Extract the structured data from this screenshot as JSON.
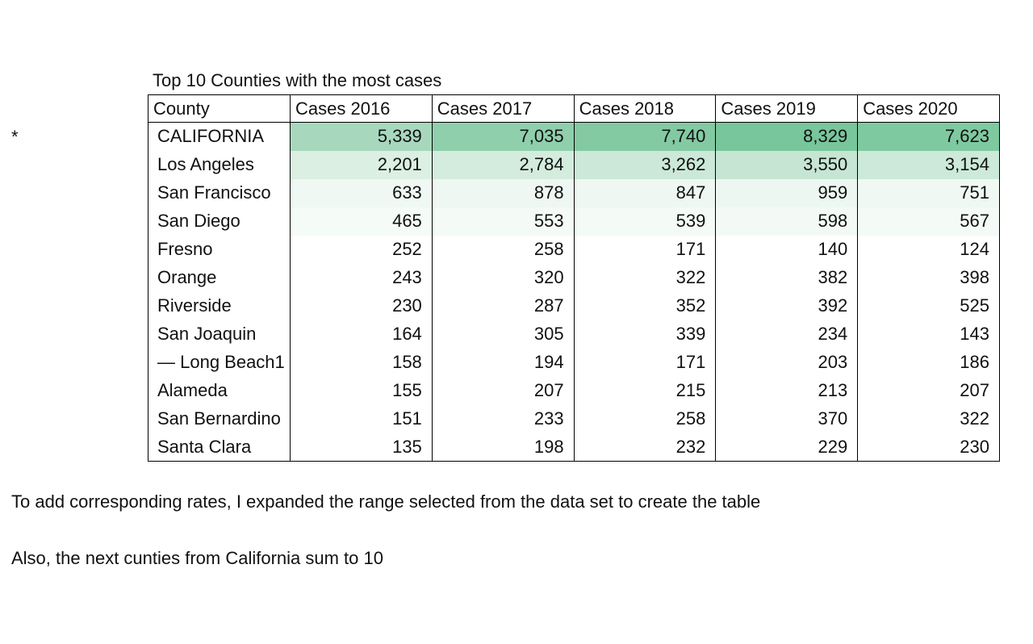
{
  "marker": "*",
  "table": {
    "title": "Top 10 Counties with the most cases",
    "headers": [
      "County",
      "Cases 2016",
      "Cases 2017",
      "Cases 2018",
      "Cases 2019",
      "Cases 2020"
    ],
    "rows": [
      {
        "county": "CALIFORNIA",
        "values": [
          "5,339",
          "7,035",
          "7,740",
          "8,329",
          "7,623"
        ],
        "colors": [
          "#a7d8bd",
          "#8fcfac",
          "#83caa3",
          "#78c69b",
          "#7fc9a0"
        ]
      },
      {
        "county": "Los Angeles",
        "values": [
          "2,201",
          "2,784",
          "3,262",
          "3,550",
          "3,154"
        ],
        "colors": [
          "#dbefe3",
          "#d3ecde",
          "#cbe8d8",
          "#c6e6d3",
          "#cce9d9"
        ]
      },
      {
        "county": "San Francisco",
        "values": [
          "633",
          "878",
          "847",
          "959",
          "751"
        ],
        "colors": [
          "#f0f8f3",
          "#eef7f1",
          "#eef7f1",
          "#edf7f1",
          "#eff8f2"
        ]
      },
      {
        "county": "San Diego",
        "values": [
          "465",
          "553",
          "539",
          "598",
          "567"
        ],
        "colors": [
          "#f5fbf7",
          "#f4faf6",
          "#f4faf6",
          "#f3faf5",
          "#f4faf6"
        ]
      },
      {
        "county": "Fresno",
        "values": [
          "252",
          "258",
          "171",
          "140",
          "124"
        ],
        "colors": [
          "#ffffff",
          "#ffffff",
          "#ffffff",
          "#ffffff",
          "#ffffff"
        ]
      },
      {
        "county": "Orange",
        "values": [
          "243",
          "320",
          "322",
          "382",
          "398"
        ],
        "colors": [
          "#ffffff",
          "#ffffff",
          "#ffffff",
          "#ffffff",
          "#ffffff"
        ]
      },
      {
        "county": "Riverside",
        "values": [
          "230",
          "287",
          "352",
          "392",
          "525"
        ],
        "colors": [
          "#ffffff",
          "#ffffff",
          "#ffffff",
          "#ffffff",
          "#ffffff"
        ]
      },
      {
        "county": "San Joaquin",
        "values": [
          "164",
          "305",
          "339",
          "234",
          "143"
        ],
        "colors": [
          "#ffffff",
          "#ffffff",
          "#ffffff",
          "#ffffff",
          "#ffffff"
        ]
      },
      {
        "county": "— Long Beach1",
        "values": [
          "158",
          "194",
          "171",
          "203",
          "186"
        ],
        "colors": [
          "#ffffff",
          "#ffffff",
          "#ffffff",
          "#ffffff",
          "#ffffff"
        ]
      },
      {
        "county": "Alameda",
        "values": [
          "155",
          "207",
          "215",
          "213",
          "207"
        ],
        "colors": [
          "#ffffff",
          "#ffffff",
          "#ffffff",
          "#ffffff",
          "#ffffff"
        ]
      },
      {
        "county": "San Bernardino",
        "values": [
          "151",
          "233",
          "258",
          "370",
          "322"
        ],
        "colors": [
          "#ffffff",
          "#ffffff",
          "#ffffff",
          "#ffffff",
          "#ffffff"
        ]
      },
      {
        "county": "Santa Clara",
        "values": [
          "135",
          "198",
          "232",
          "229",
          "230"
        ],
        "colors": [
          "#ffffff",
          "#ffffff",
          "#ffffff",
          "#ffffff",
          "#ffffff"
        ]
      }
    ]
  },
  "notes": [
    "To add corresponding rates, I expanded the range selected from the data set to create the table",
    "Also, the next cunties from California sum to 10"
  ]
}
